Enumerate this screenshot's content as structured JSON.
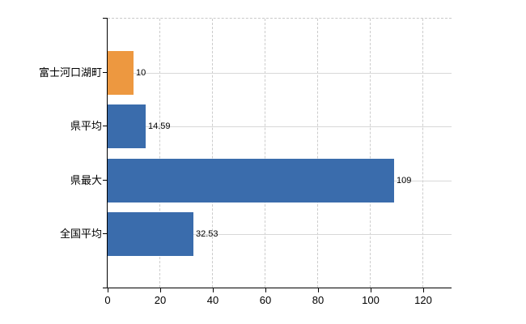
{
  "chart_data": {
    "type": "bar",
    "orientation": "horizontal",
    "title": "",
    "xlabel": "",
    "ylabel": "",
    "categories": [
      "富士河口湖町",
      "県平均",
      "県最大",
      "全国平均"
    ],
    "values": [
      10,
      14.59,
      109,
      32.53
    ],
    "value_labels": [
      "10",
      "14.59",
      "109",
      "32.53"
    ],
    "bar_colors": [
      "#ed9840",
      "#3a6cac",
      "#3a6cac",
      "#3a6cac"
    ],
    "x_ticks": [
      0,
      20,
      40,
      60,
      80,
      100,
      120
    ],
    "x_tick_labels": [
      "0",
      "20",
      "40",
      "60",
      "80",
      "100",
      "120"
    ],
    "xlim": [
      0,
      130.8
    ],
    "grid": {
      "vertical": "dashed",
      "horizontal": "solid",
      "gridline_color": "#cccccc",
      "hgridline_color": "#d8d8d8",
      "plot_top_border": "dashed"
    },
    "legend": "none",
    "colors": {
      "axis": "#000000",
      "text": "#000000",
      "background": "#ffffff",
      "accent_orange": "#ed9840",
      "accent_blue": "#3a6cac"
    }
  }
}
